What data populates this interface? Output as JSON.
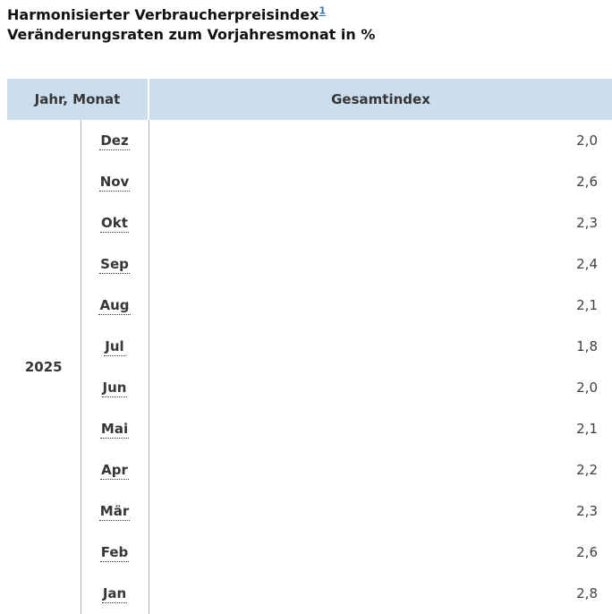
{
  "header": {
    "title": "Harmonisierter Verbraucherpreisindex",
    "footnote_marker": "1",
    "subtitle": "Veränderungsraten zum Vorjahresmonat in %"
  },
  "table": {
    "columns": [
      "Jahr, Monat",
      "Gesamtindex"
    ],
    "year": "2025",
    "rows": [
      {
        "month": "Dez",
        "value": "2,0"
      },
      {
        "month": "Nov",
        "value": "2,6"
      },
      {
        "month": "Okt",
        "value": "2,3"
      },
      {
        "month": "Sep",
        "value": "2,4"
      },
      {
        "month": "Aug",
        "value": "2,1"
      },
      {
        "month": "Jul",
        "value": "1,8"
      },
      {
        "month": "Jun",
        "value": "2,0"
      },
      {
        "month": "Mai",
        "value": "2,1"
      },
      {
        "month": "Apr",
        "value": "2,2"
      },
      {
        "month": "Mär",
        "value": "2,3"
      },
      {
        "month": "Feb",
        "value": "2,6"
      },
      {
        "month": "Jan",
        "value": "2,8"
      }
    ]
  },
  "colors": {
    "header_bg": "#ccdeed",
    "border_gray": "#b3b3b3",
    "link_blue": "#3372b8"
  },
  "chart_data": {
    "type": "table",
    "title": "Harmonisierter Verbraucherpreisindex",
    "subtitle": "Veränderungsraten zum Vorjahresmonat in %",
    "columns": [
      "Jahr, Monat",
      "Gesamtindex"
    ],
    "year": "2025",
    "categories": [
      "Dez",
      "Nov",
      "Okt",
      "Sep",
      "Aug",
      "Jul",
      "Jun",
      "Mai",
      "Apr",
      "Mär",
      "Feb",
      "Jan"
    ],
    "values": [
      2.0,
      2.6,
      2.3,
      2.4,
      2.1,
      1.8,
      2.0,
      2.1,
      2.2,
      2.3,
      2.6,
      2.8
    ],
    "unit": "%"
  }
}
